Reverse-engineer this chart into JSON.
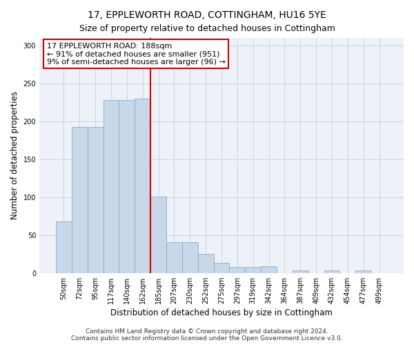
{
  "title": "17, EPPLEWORTH ROAD, COTTINGHAM, HU16 5YE",
  "subtitle": "Size of property relative to detached houses in Cottingham",
  "xlabel": "Distribution of detached houses by size in Cottingham",
  "ylabel": "Number of detached properties",
  "bar_labels": [
    "50sqm",
    "72sqm",
    "95sqm",
    "117sqm",
    "140sqm",
    "162sqm",
    "185sqm",
    "207sqm",
    "230sqm",
    "252sqm",
    "275sqm",
    "297sqm",
    "319sqm",
    "342sqm",
    "364sqm",
    "387sqm",
    "409sqm",
    "432sqm",
    "454sqm",
    "477sqm",
    "499sqm"
  ],
  "bar_values": [
    68,
    193,
    193,
    228,
    228,
    230,
    101,
    41,
    41,
    25,
    13,
    8,
    8,
    9,
    0,
    3,
    0,
    3,
    0,
    3,
    0
  ],
  "bar_color": "#c8d8e8",
  "bar_edgecolor": "#7bafd4",
  "vline_x_index": 6,
  "vline_color": "#cc0000",
  "annotation_text": "17 EPPLEWORTH ROAD: 188sqm\n← 91% of detached houses are smaller (951)\n9% of semi-detached houses are larger (96) →",
  "annotation_box_edgecolor": "#cc0000",
  "annotation_box_facecolor": "#ffffff",
  "ylim": [
    0,
    310
  ],
  "yticks": [
    0,
    50,
    100,
    150,
    200,
    250,
    300
  ],
  "grid_color": "#c8d4e0",
  "background_color": "#eef2f8",
  "footer_line1": "Contains HM Land Registry data © Crown copyright and database right 2024.",
  "footer_line2": "Contains public sector information licensed under the Open Government Licence v3.0.",
  "title_fontsize": 10,
  "subtitle_fontsize": 9,
  "axis_label_fontsize": 8.5,
  "tick_fontsize": 7,
  "annotation_fontsize": 8,
  "footer_fontsize": 6.5
}
